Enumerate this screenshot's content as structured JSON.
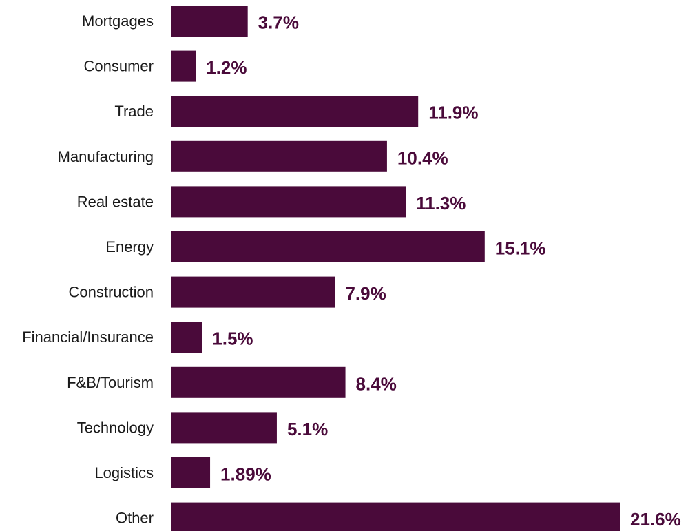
{
  "colors": {
    "bar": "#4a0a3a",
    "value_label": "#4a0a3a",
    "category_label": "#1a1a1a",
    "background": "#ffffff"
  },
  "chart_data": {
    "type": "bar",
    "orientation": "horizontal",
    "title": "",
    "xlabel": "",
    "ylabel": "",
    "grid": false,
    "legend": "none",
    "value_axis_visible": false,
    "xlim": [
      0,
      21.6
    ],
    "categories": [
      "Mortgages",
      "Consumer",
      "Trade",
      "Manufacturing",
      "Real estate",
      "Energy",
      "Construction",
      "Financial/Insurance",
      "F&B/Tourism",
      "Technology",
      "Logistics",
      "Other"
    ],
    "values": [
      3.7,
      1.2,
      11.9,
      10.4,
      11.3,
      15.1,
      7.9,
      1.5,
      8.4,
      5.1,
      1.89,
      21.6
    ],
    "value_labels": [
      "3.7%",
      "1.2%",
      "11.9%",
      "10.4%",
      "11.3%",
      "15.1%",
      "7.9%",
      "1.5%",
      "8.4%",
      "5.1%",
      "1.89%",
      "21.6%"
    ]
  }
}
